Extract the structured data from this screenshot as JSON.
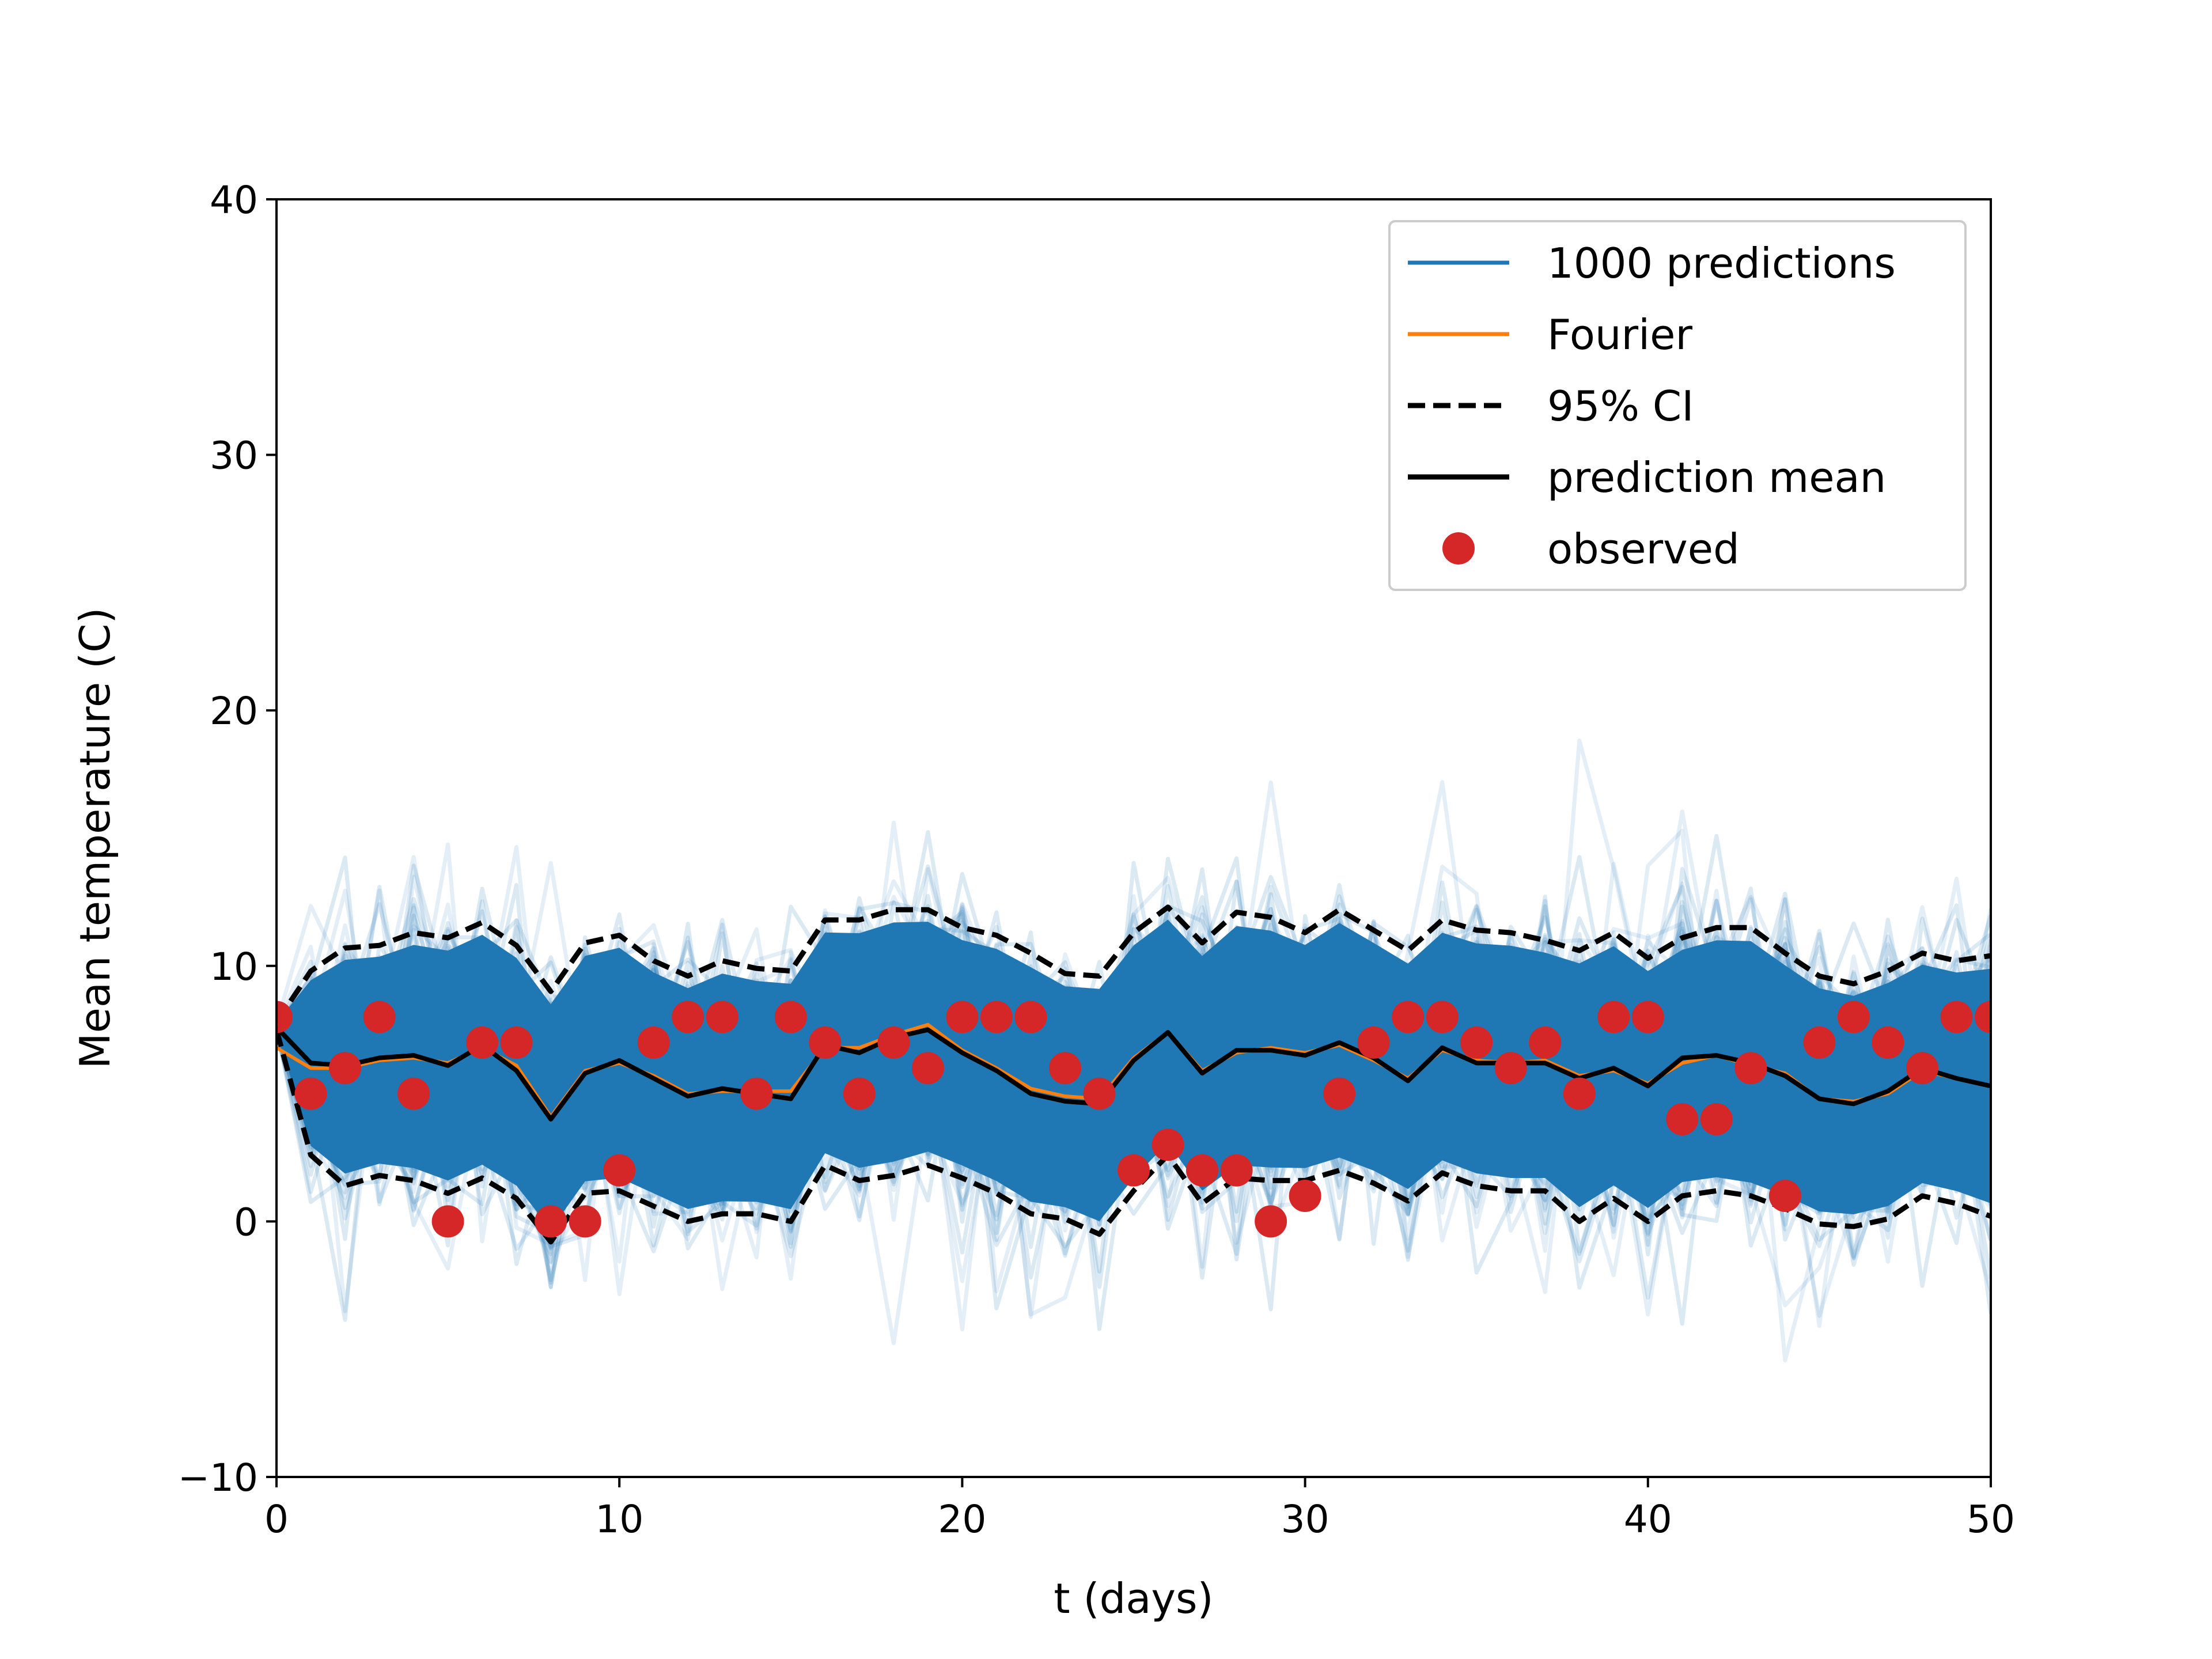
{
  "chart_data": {
    "type": "line",
    "title": "",
    "xlabel": "t (days)",
    "ylabel": "Mean temperature (C)",
    "xlim": [
      0,
      50
    ],
    "ylim": [
      -10,
      40
    ],
    "x_ticks": [
      "0",
      "10",
      "20",
      "30",
      "40",
      "50"
    ],
    "y_ticks": [
      "−10",
      "0",
      "10",
      "20",
      "30",
      "40"
    ],
    "grid": false,
    "legend_position": "upper right",
    "colors": {
      "predictions": "#1f77b4",
      "fourier": "#ff7f0e",
      "ci": "#000000",
      "mean": "#000000",
      "observed": "#d62728"
    },
    "legend": [
      {
        "label": "1000 predictions",
        "style": "line"
      },
      {
        "label": "Fourier",
        "style": "line"
      },
      {
        "label": "95% CI",
        "style": "dashed"
      },
      {
        "label": "prediction mean",
        "style": "line"
      },
      {
        "label": "observed",
        "style": "marker"
      }
    ],
    "x": [
      0,
      1,
      2,
      3,
      4,
      5,
      6,
      7,
      8,
      9,
      10,
      11,
      12,
      13,
      14,
      15,
      16,
      17,
      18,
      19,
      20,
      21,
      22,
      23,
      24,
      25,
      26,
      27,
      28,
      29,
      30,
      31,
      32,
      33,
      34,
      35,
      36,
      37,
      38,
      39,
      40,
      41,
      42,
      43,
      44,
      45,
      46,
      47,
      48,
      49,
      50
    ],
    "observed": [
      8,
      5,
      6,
      8,
      5,
      0,
      7,
      7,
      0,
      0,
      2,
      7,
      8,
      8,
      5,
      8,
      7,
      5,
      7,
      6,
      8,
      8,
      8,
      6,
      5,
      2,
      3,
      2,
      2,
      0,
      1,
      5,
      7,
      8,
      8,
      7,
      6,
      7,
      5,
      8,
      8,
      4,
      4,
      6,
      1,
      7,
      8,
      7,
      6,
      8,
      8
    ],
    "prediction_mean": [
      7.6,
      6.2,
      6.1,
      6.4,
      6.5,
      6.1,
      6.9,
      5.9,
      4.0,
      5.8,
      6.3,
      5.6,
      4.9,
      5.2,
      5.0,
      4.8,
      6.9,
      6.6,
      7.2,
      7.5,
      6.6,
      5.9,
      5.0,
      4.7,
      4.6,
      6.3,
      7.4,
      5.8,
      6.7,
      6.7,
      6.5,
      7.0,
      6.4,
      5.5,
      6.8,
      6.2,
      6.2,
      6.2,
      5.6,
      6.0,
      5.3,
      6.4,
      6.5,
      6.2,
      5.7,
      4.8,
      4.6,
      5.1,
      6.0,
      5.6,
      5.3
    ],
    "fourier": [
      6.8,
      6.0,
      6.0,
      6.3,
      6.4,
      6.2,
      6.8,
      6.1,
      4.1,
      5.9,
      6.2,
      5.7,
      5.0,
      5.1,
      5.1,
      5.1,
      6.8,
      6.8,
      7.3,
      7.7,
      6.7,
      6.0,
      5.2,
      4.9,
      4.8,
      6.4,
      7.4,
      5.9,
      6.6,
      6.8,
      6.6,
      6.9,
      6.3,
      5.6,
      6.7,
      6.3,
      6.2,
      6.3,
      5.7,
      5.9,
      5.4,
      6.2,
      6.5,
      6.1,
      5.8,
      4.8,
      4.7,
      5.0,
      5.9,
      5.6,
      5.3
    ],
    "ci_upper": [
      7.8,
      9.8,
      10.7,
      10.8,
      11.3,
      11.1,
      11.7,
      10.8,
      9.0,
      10.9,
      11.2,
      10.2,
      9.6,
      10.2,
      9.9,
      9.8,
      11.8,
      11.8,
      12.2,
      12.2,
      11.5,
      11.2,
      10.5,
      9.7,
      9.6,
      11.3,
      12.3,
      10.9,
      12.1,
      11.9,
      11.3,
      12.2,
      11.4,
      10.6,
      11.8,
      11.4,
      11.3,
      11.0,
      10.6,
      11.3,
      10.3,
      11.1,
      11.5,
      11.5,
      10.5,
      9.6,
      9.3,
      9.8,
      10.5,
      10.2,
      10.4
    ],
    "ci_lower": [
      7.5,
      2.6,
      1.4,
      1.8,
      1.6,
      1.1,
      1.7,
      0.9,
      -0.8,
      1.1,
      1.2,
      0.6,
      0.0,
      0.3,
      0.3,
      0.0,
      2.2,
      1.6,
      1.8,
      2.2,
      1.7,
      1.1,
      0.3,
      0.1,
      -0.5,
      1.2,
      2.6,
      0.7,
      1.7,
      1.6,
      1.6,
      2.0,
      1.5,
      0.8,
      1.9,
      1.4,
      1.2,
      1.2,
      0.0,
      0.9,
      0.0,
      1.0,
      1.2,
      1.0,
      0.5,
      -0.1,
      -0.2,
      0.1,
      1.0,
      0.7,
      0.2
    ]
  }
}
